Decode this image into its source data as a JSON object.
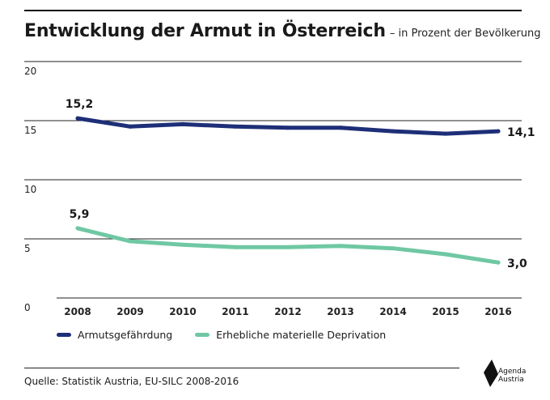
{
  "header": {
    "title": "Entwicklung der Armut in Österreich",
    "subtitle": "– in Prozent der Bevölkerung"
  },
  "footer": {
    "source": "Quelle: Statistik Austria, EU-SILC 2008-2016",
    "logo_line1": "Agenda",
    "logo_line2": "Austria"
  },
  "colors": {
    "series1": "#1e2f78",
    "series2": "#6fc8a3",
    "grid": "#222222"
  },
  "chart_data": {
    "type": "line",
    "title": "Entwicklung der Armut in Österreich",
    "subtitle": "– in Prozent der Bevölkerung",
    "x": [
      "2008",
      "2009",
      "2010",
      "2011",
      "2012",
      "2013",
      "2014",
      "2015",
      "2016"
    ],
    "ylim": [
      0,
      20
    ],
    "yticks": [
      "0",
      "5",
      "10",
      "15",
      "20"
    ],
    "grid": true,
    "legend": "bottom-left",
    "series": [
      {
        "name": "Armutsgefährdung",
        "values": [
          15.2,
          14.5,
          14.7,
          14.5,
          14.4,
          14.4,
          14.1,
          13.9,
          14.1
        ],
        "labels": [
          {
            "index": 0,
            "text": "15,2"
          },
          {
            "index": 8,
            "text": "14,1"
          }
        ]
      },
      {
        "name": "Erhebliche materielle Deprivation",
        "values": [
          5.9,
          4.8,
          4.5,
          4.3,
          4.3,
          4.4,
          4.2,
          3.7,
          3.0
        ],
        "labels": [
          {
            "index": 0,
            "text": "5,9"
          },
          {
            "index": 8,
            "text": "3,0"
          }
        ]
      }
    ]
  }
}
